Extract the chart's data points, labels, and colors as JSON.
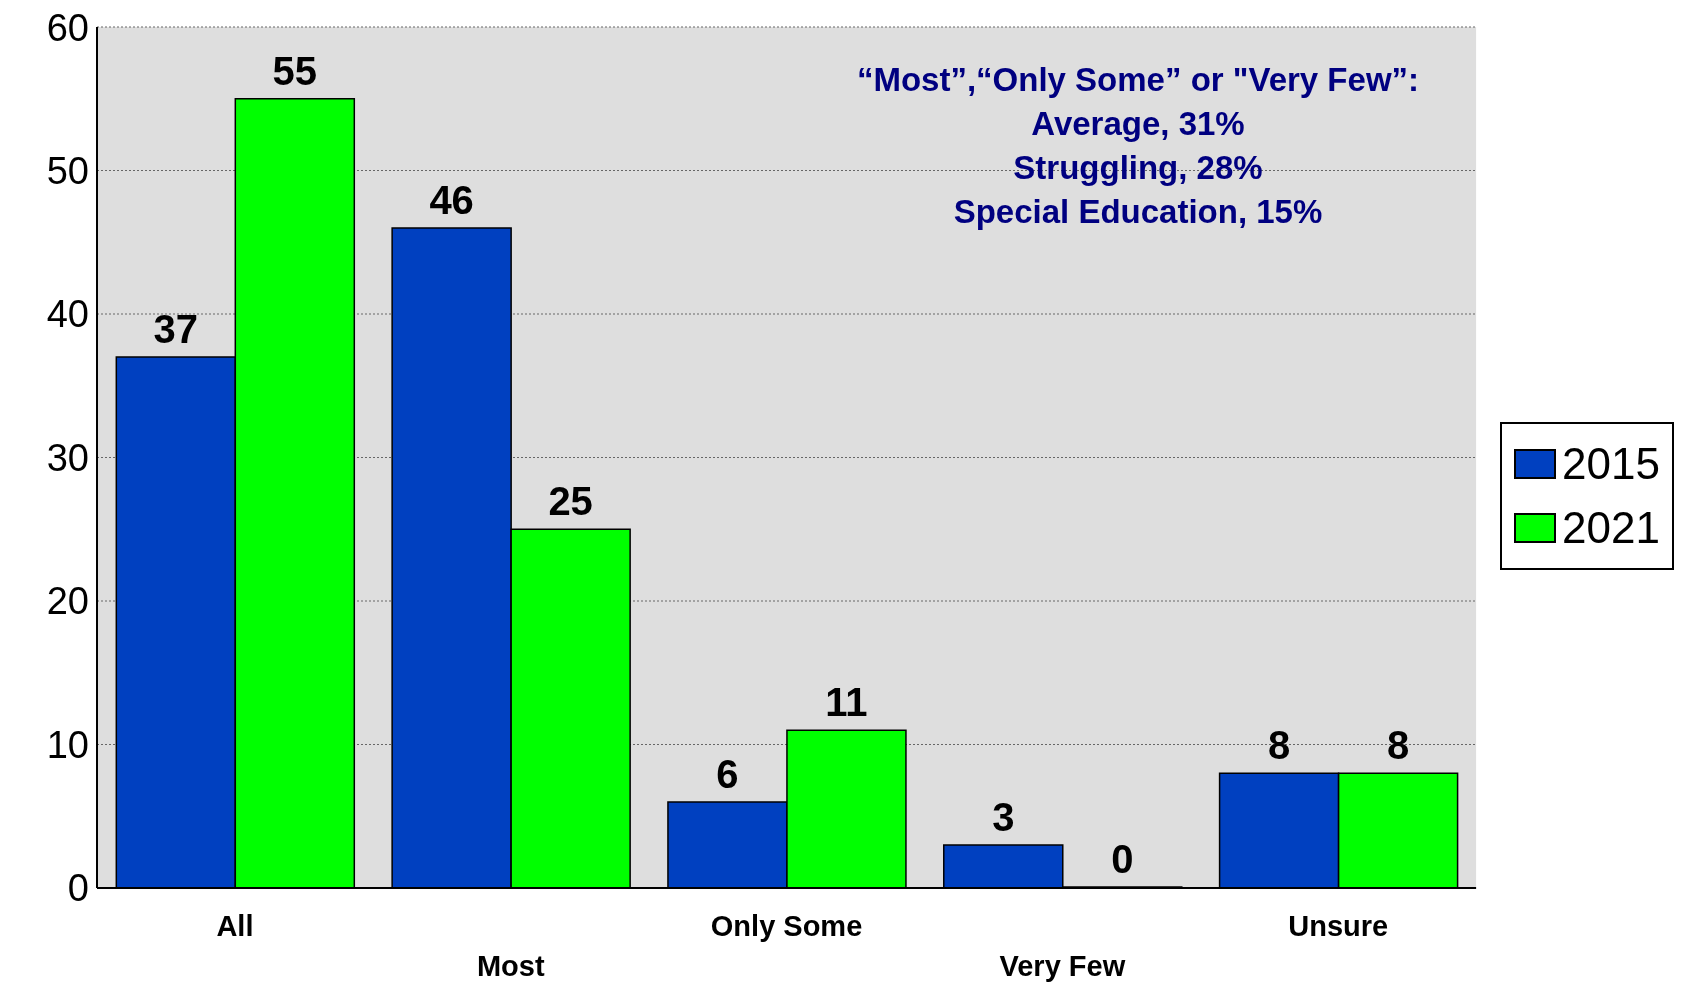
{
  "chart_data": {
    "type": "bar",
    "categories": [
      "All",
      "Most",
      "Only Some",
      "Very Few",
      "Unsure"
    ],
    "series": [
      {
        "name": "2015",
        "color": "#0040c0",
        "values": [
          37,
          46,
          6,
          3,
          8
        ]
      },
      {
        "name": "2021",
        "color": "#00ff00",
        "values": [
          55,
          25,
          11,
          0,
          8
        ]
      }
    ],
    "ylim": [
      0,
      60
    ],
    "yticks": [
      0,
      10,
      20,
      30,
      40,
      50,
      60
    ],
    "grid": "y",
    "legend": "right",
    "data_labels": true,
    "annotations": [
      "“Most”,“Only Some” or \"Very Few”:",
      "Average, 31%",
      "Struggling, 28%",
      "Special Education, 15%"
    ]
  }
}
